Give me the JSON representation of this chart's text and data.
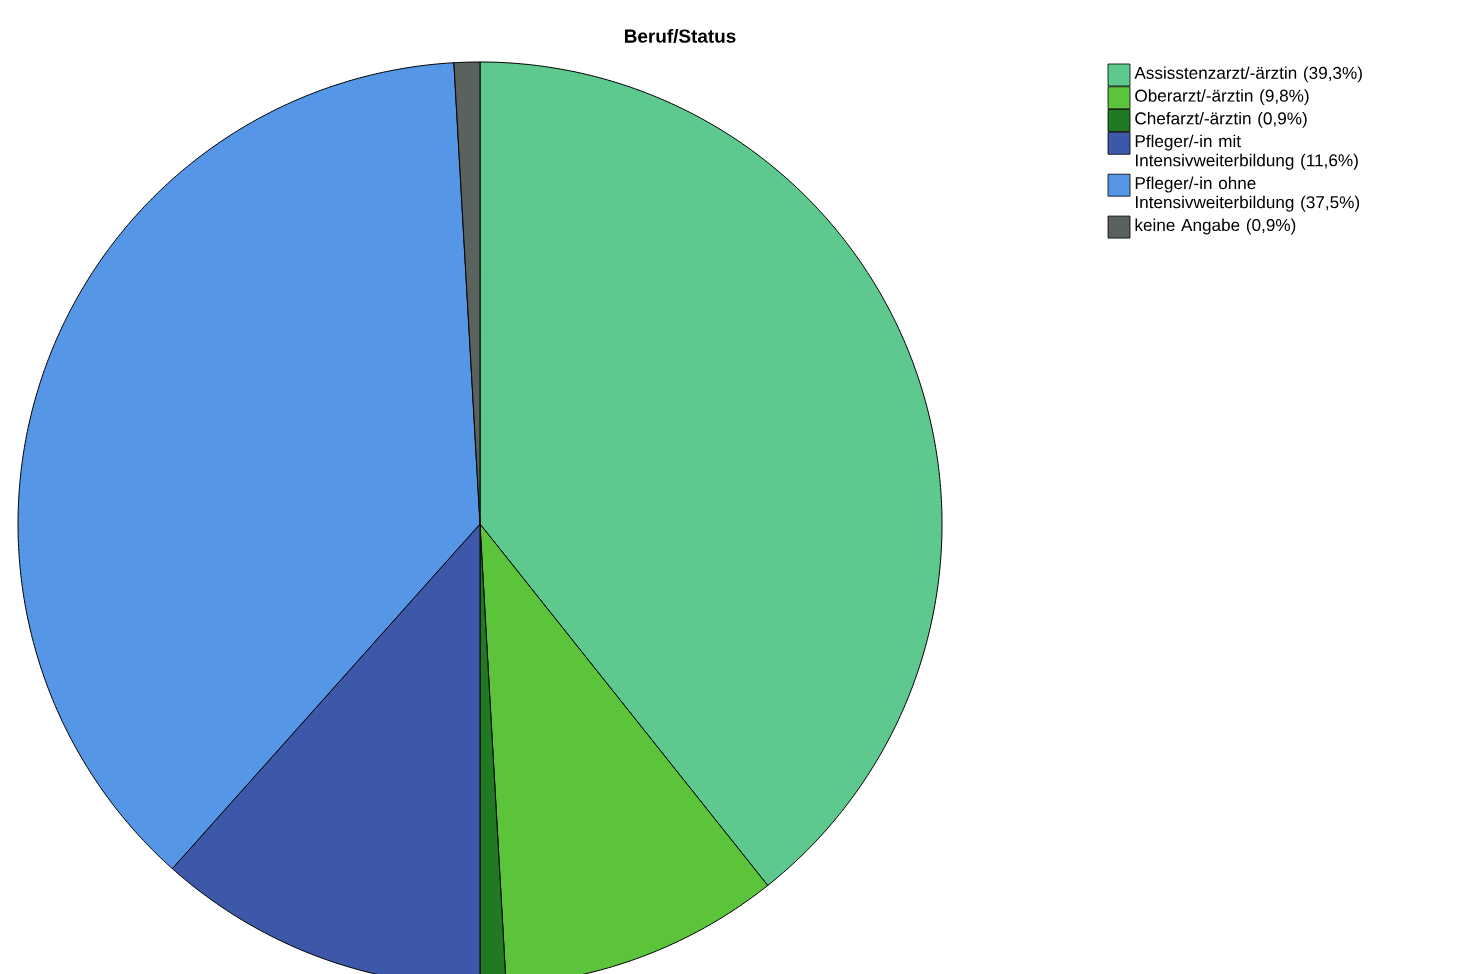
{
  "chart_data": {
    "type": "pie",
    "title": "Beruf/Status",
    "categories": [
      "Assisstenzarzt/-ärztin (39,3%)",
      "Oberarzt/-ärztin (9,8%)",
      "Chefarzt/-ärztin (0,9%)",
      "Pfleger/-in mit Intensivweiterbildung (11,6%)",
      "Pfleger/-in ohne Intensivweiterbildung (37,5%)",
      "keine Angabe (0,9%)"
    ],
    "values": [
      39.3,
      9.8,
      0.9,
      11.6,
      37.5,
      0.9
    ],
    "colors": [
      "#5dc98f",
      "#5cc43a",
      "#1f7a22",
      "#3d58a8",
      "#5597e6",
      "#5a625e"
    ],
    "legend": "top right"
  }
}
